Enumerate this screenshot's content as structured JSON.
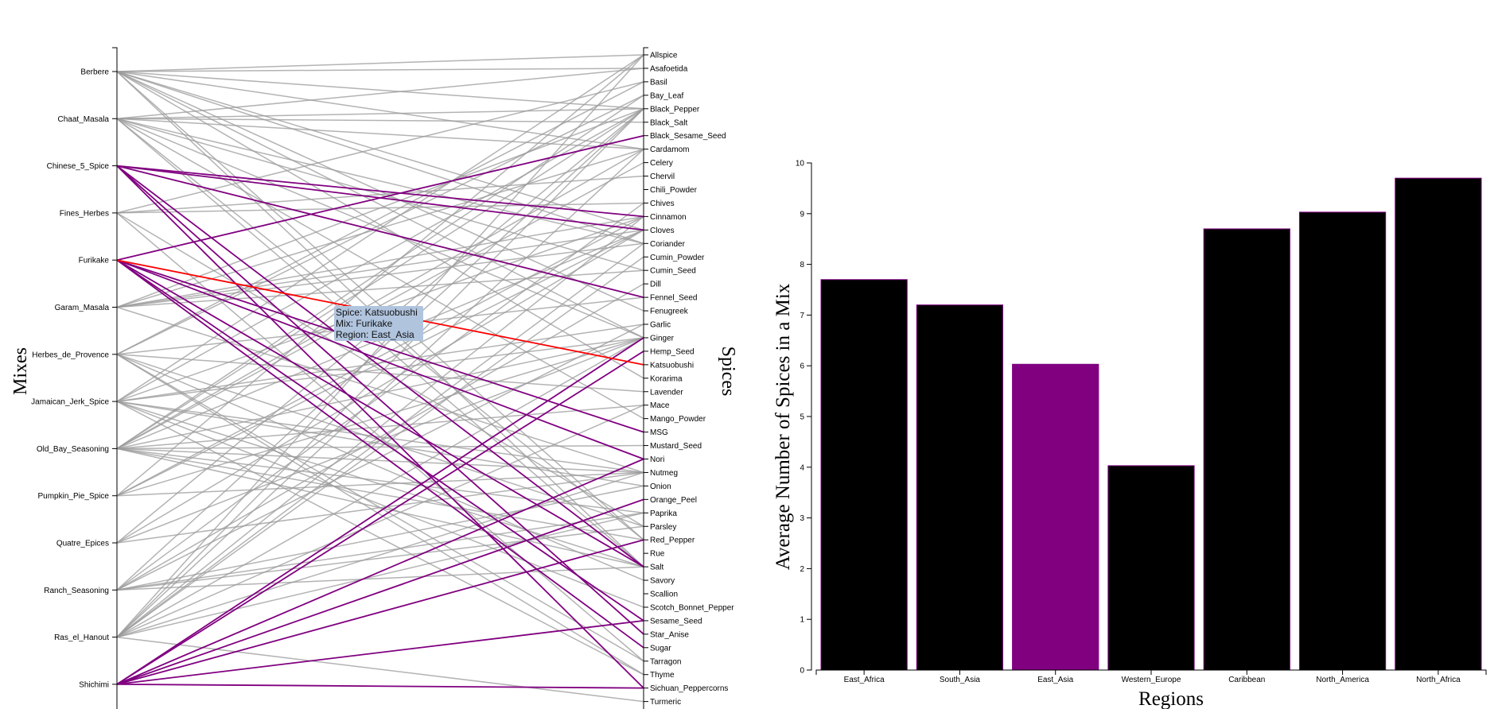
{
  "chart_data": [
    {
      "type": "bipartite-links",
      "left_axis_title": "Mixes",
      "right_axis_title": "Spices",
      "mixes": [
        "Berbere",
        "Chaat_Masala",
        "Chinese_5_Spice",
        "Fines_Herbes",
        "Furikake",
        "Garam_Masala",
        "Herbes_de_Provence",
        "Jamaican_Jerk_Spice",
        "Old_Bay_Seasoning",
        "Pumpkin_Pie_Spice",
        "Quatre_Epices",
        "Ranch_Seasoning",
        "Ras_el_Hanout",
        "Shichimi"
      ],
      "spices": [
        "Allspice",
        "Asafoetida",
        "Basil",
        "Bay_Leaf",
        "Black_Pepper",
        "Black_Salt",
        "Black_Sesame_Seed",
        "Cardamom",
        "Celery",
        "Chervil",
        "Chili_Powder",
        "Chives",
        "Cinnamon",
        "Cloves",
        "Coriander",
        "Cumin_Powder",
        "Cumin_Seed",
        "Dill",
        "Fennel_Seed",
        "Fenugreek",
        "Garlic",
        "Ginger",
        "Hemp_Seed",
        "Katsuobushi",
        "Korarima",
        "Lavender",
        "Mace",
        "Mango_Powder",
        "MSG",
        "Mustard_Seed",
        "Nori",
        "Nutmeg",
        "Onion",
        "Orange_Peel",
        "Paprika",
        "Parsley",
        "Red_Pepper",
        "Rue",
        "Salt",
        "Savory",
        "Scallion",
        "Scotch_Bonnet_Pepper",
        "Sesame_Seed",
        "Star_Anise",
        "Sugar",
        "Tarragon",
        "Thyme",
        "Sichuan_Peppercorns",
        "Turmeric"
      ],
      "links": [
        [
          "Berbere",
          "Allspice"
        ],
        [
          "Berbere",
          "Black_Pepper"
        ],
        [
          "Berbere",
          "Cardamom"
        ],
        [
          "Berbere",
          "Cloves"
        ],
        [
          "Berbere",
          "Coriander"
        ],
        [
          "Berbere",
          "Fenugreek"
        ],
        [
          "Berbere",
          "Ginger"
        ],
        [
          "Berbere",
          "Korarima"
        ],
        [
          "Berbere",
          "Red_Pepper"
        ],
        [
          "Berbere",
          "Salt"
        ],
        [
          "Berbere",
          "Asafoetida"
        ],
        [
          "Chaat_Masala",
          "Asafoetida"
        ],
        [
          "Chaat_Masala",
          "Black_Pepper"
        ],
        [
          "Chaat_Masala",
          "Black_Salt"
        ],
        [
          "Chaat_Masala",
          "Coriander"
        ],
        [
          "Chaat_Masala",
          "Cumin_Seed"
        ],
        [
          "Chaat_Masala",
          "Ginger"
        ],
        [
          "Chaat_Masala",
          "Mango_Powder"
        ],
        [
          "Chaat_Masala",
          "Red_Pepper"
        ],
        [
          "Chaat_Masala",
          "Salt"
        ],
        [
          "Chaat_Masala",
          "Cardamom"
        ],
        [
          "Chinese_5_Spice",
          "Cinnamon"
        ],
        [
          "Chinese_5_Spice",
          "Cloves"
        ],
        [
          "Chinese_5_Spice",
          "Fennel_Seed"
        ],
        [
          "Chinese_5_Spice",
          "Star_Anise"
        ],
        [
          "Chinese_5_Spice",
          "Sichuan_Peppercorns"
        ],
        [
          "Chinese_5_Spice",
          "Salt"
        ],
        [
          "Fines_Herbes",
          "Chervil"
        ],
        [
          "Fines_Herbes",
          "Chives"
        ],
        [
          "Fines_Herbes",
          "Parsley"
        ],
        [
          "Fines_Herbes",
          "Tarragon"
        ],
        [
          "Fines_Herbes",
          "Basil"
        ],
        [
          "Furikake",
          "Black_Sesame_Seed"
        ],
        [
          "Furikake",
          "Katsuobushi"
        ],
        [
          "Furikake",
          "MSG"
        ],
        [
          "Furikake",
          "Nori"
        ],
        [
          "Furikake",
          "Salt"
        ],
        [
          "Furikake",
          "Sesame_Seed"
        ],
        [
          "Furikake",
          "Sugar"
        ],
        [
          "Garam_Masala",
          "Black_Pepper"
        ],
        [
          "Garam_Masala",
          "Cardamom"
        ],
        [
          "Garam_Masala",
          "Cinnamon"
        ],
        [
          "Garam_Masala",
          "Cloves"
        ],
        [
          "Garam_Masala",
          "Cumin_Seed"
        ],
        [
          "Garam_Masala",
          "Nutmeg"
        ],
        [
          "Garam_Masala",
          "Coriander"
        ],
        [
          "Herbes_de_Provence",
          "Basil"
        ],
        [
          "Herbes_de_Provence",
          "Bay_Leaf"
        ],
        [
          "Herbes_de_Provence",
          "Fennel_Seed"
        ],
        [
          "Herbes_de_Provence",
          "Lavender"
        ],
        [
          "Herbes_de_Provence",
          "Savory"
        ],
        [
          "Herbes_de_Provence",
          "Tarragon"
        ],
        [
          "Herbes_de_Provence",
          "Thyme"
        ],
        [
          "Herbes_de_Provence",
          "Parsley"
        ],
        [
          "Jamaican_Jerk_Spice",
          "Allspice"
        ],
        [
          "Jamaican_Jerk_Spice",
          "Black_Pepper"
        ],
        [
          "Jamaican_Jerk_Spice",
          "Cinnamon"
        ],
        [
          "Jamaican_Jerk_Spice",
          "Garlic"
        ],
        [
          "Jamaican_Jerk_Spice",
          "Ginger"
        ],
        [
          "Jamaican_Jerk_Spice",
          "Nutmeg"
        ],
        [
          "Jamaican_Jerk_Spice",
          "Onion"
        ],
        [
          "Jamaican_Jerk_Spice",
          "Scotch_Bonnet_Pepper"
        ],
        [
          "Jamaican_Jerk_Spice",
          "Thyme"
        ],
        [
          "Jamaican_Jerk_Spice",
          "Salt"
        ],
        [
          "Old_Bay_Seasoning",
          "Bay_Leaf"
        ],
        [
          "Old_Bay_Seasoning",
          "Black_Pepper"
        ],
        [
          "Old_Bay_Seasoning",
          "Celery"
        ],
        [
          "Old_Bay_Seasoning",
          "Cloves"
        ],
        [
          "Old_Bay_Seasoning",
          "Ginger"
        ],
        [
          "Old_Bay_Seasoning",
          "Mace"
        ],
        [
          "Old_Bay_Seasoning",
          "Mustard_Seed"
        ],
        [
          "Old_Bay_Seasoning",
          "Nutmeg"
        ],
        [
          "Old_Bay_Seasoning",
          "Paprika"
        ],
        [
          "Old_Bay_Seasoning",
          "Red_Pepper"
        ],
        [
          "Old_Bay_Seasoning",
          "Salt"
        ],
        [
          "Old_Bay_Seasoning",
          "Cardamom"
        ],
        [
          "Pumpkin_Pie_Spice",
          "Allspice"
        ],
        [
          "Pumpkin_Pie_Spice",
          "Cinnamon"
        ],
        [
          "Pumpkin_Pie_Spice",
          "Cloves"
        ],
        [
          "Pumpkin_Pie_Spice",
          "Ginger"
        ],
        [
          "Pumpkin_Pie_Spice",
          "Nutmeg"
        ],
        [
          "Quatre_Epices",
          "Black_Pepper"
        ],
        [
          "Quatre_Epices",
          "Cloves"
        ],
        [
          "Quatre_Epices",
          "Ginger"
        ],
        [
          "Quatre_Epices",
          "Nutmeg"
        ],
        [
          "Ranch_Seasoning",
          "Black_Pepper"
        ],
        [
          "Ranch_Seasoning",
          "Chives"
        ],
        [
          "Ranch_Seasoning",
          "Dill"
        ],
        [
          "Ranch_Seasoning",
          "Garlic"
        ],
        [
          "Ranch_Seasoning",
          "Onion"
        ],
        [
          "Ranch_Seasoning",
          "Parsley"
        ],
        [
          "Ranch_Seasoning",
          "Salt"
        ],
        [
          "Ranch_Seasoning",
          "Paprika"
        ],
        [
          "Ras_el_Hanout",
          "Allspice"
        ],
        [
          "Ras_el_Hanout",
          "Black_Pepper"
        ],
        [
          "Ras_el_Hanout",
          "Cardamom"
        ],
        [
          "Ras_el_Hanout",
          "Cinnamon"
        ],
        [
          "Ras_el_Hanout",
          "Coriander"
        ],
        [
          "Ras_el_Hanout",
          "Cumin_Powder"
        ],
        [
          "Ras_el_Hanout",
          "Ginger"
        ],
        [
          "Ras_el_Hanout",
          "Nutmeg"
        ],
        [
          "Ras_el_Hanout",
          "Paprika"
        ],
        [
          "Ras_el_Hanout",
          "Turmeric"
        ],
        [
          "Ras_el_Hanout",
          "Mace"
        ],
        [
          "Shichimi",
          "Ginger"
        ],
        [
          "Shichimi",
          "Hemp_Seed"
        ],
        [
          "Shichimi",
          "Nori"
        ],
        [
          "Shichimi",
          "Orange_Peel"
        ],
        [
          "Shichimi",
          "Red_Pepper"
        ],
        [
          "Shichimi",
          "Sesame_Seed"
        ],
        [
          "Shichimi",
          "Sichuan_Peppercorns"
        ]
      ],
      "highlighted_mixes": [
        "Chinese_5_Spice",
        "Furikake",
        "Shichimi"
      ],
      "selected_link": [
        "Furikake",
        "Katsuobushi"
      ],
      "colors": {
        "default": "#999999",
        "highlight": "#800080",
        "selected": "#ff0000"
      }
    },
    {
      "type": "bar",
      "xlabel": "Regions",
      "ylabel": "Average Number of Spices in a Mix",
      "categories": [
        "East_Africa",
        "South_Asia",
        "East_Asia",
        "Western_Europe",
        "Caribbean",
        "North_America",
        "North_Africa"
      ],
      "values": [
        7.7,
        7.2,
        6.03,
        4.03,
        8.7,
        9.03,
        9.7
      ],
      "ylim": [
        0,
        10
      ],
      "yticks": [
        0,
        1,
        2,
        3,
        4,
        5,
        6,
        7,
        8,
        9,
        10
      ],
      "highlighted_category": "East_Asia",
      "colors": {
        "bar": "#000000",
        "highlight": "#800080",
        "outline": "#800080"
      }
    }
  ],
  "tooltip": {
    "spice_line": "Spice: Katsuobushi",
    "mix_line": "Mix: Furikake",
    "region_line": "Region: East_Asia"
  }
}
